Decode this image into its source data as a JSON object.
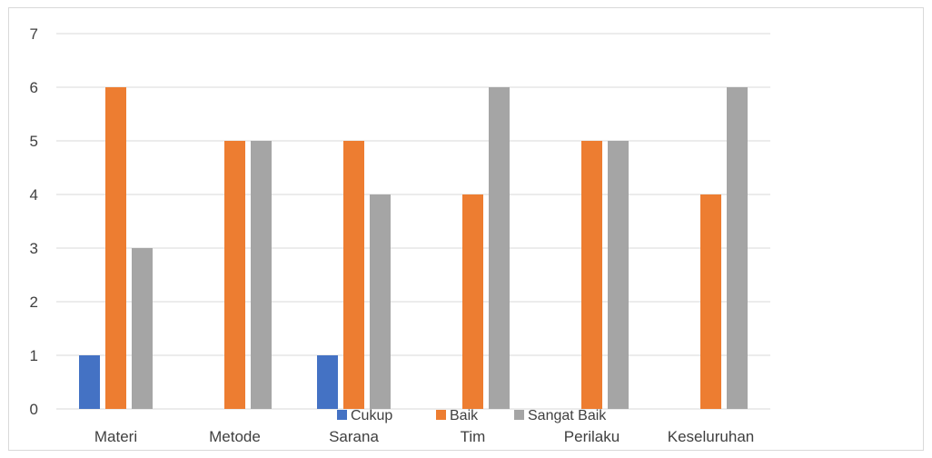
{
  "chart_data": {
    "type": "bar",
    "title": "",
    "xlabel": "",
    "ylabel": "",
    "ylim": [
      0,
      7
    ],
    "yticks": [
      "0",
      "1",
      "2",
      "3",
      "4",
      "5",
      "6",
      "7"
    ],
    "grid": true,
    "legend_position": "bottom",
    "categories": [
      "Materi",
      "Metode",
      "Sarana",
      "Tim",
      "Perilaku",
      "Keseluruhan"
    ],
    "series": [
      {
        "name": "Cukup",
        "color": "#4472C4",
        "values": [
          1,
          0,
          1,
          0,
          0,
          0
        ]
      },
      {
        "name": "Baik",
        "color": "#ED7D31",
        "values": [
          6,
          5,
          5,
          4,
          5,
          4
        ]
      },
      {
        "name": "Sangat Baik",
        "color": "#A5A5A5",
        "values": [
          3,
          5,
          4,
          6,
          5,
          6
        ]
      }
    ]
  }
}
